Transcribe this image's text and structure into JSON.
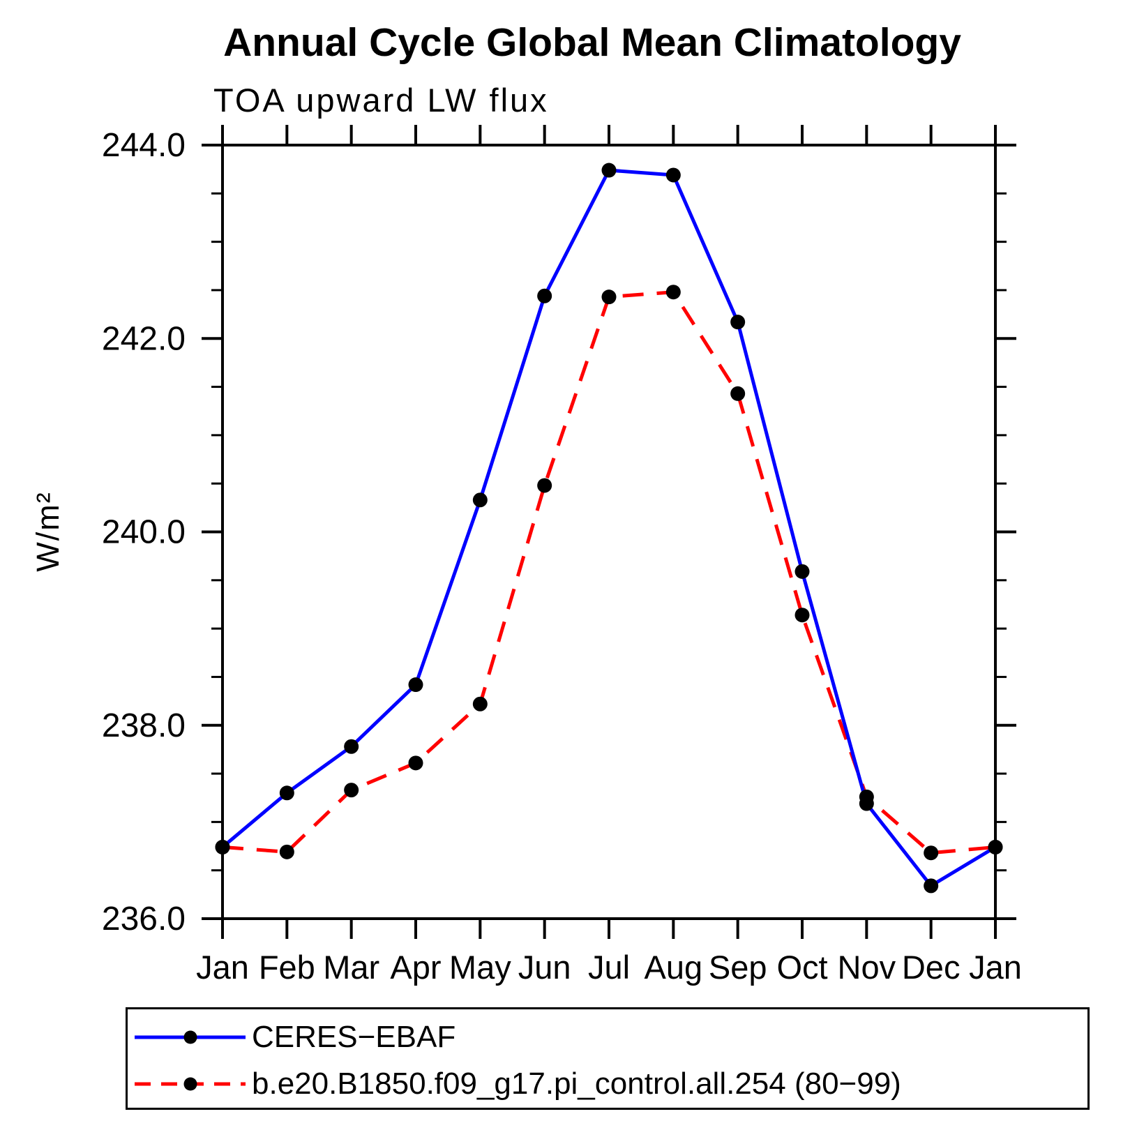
{
  "title": "Annual Cycle Global Mean Climatology",
  "subtitle": "TOA upward LW flux",
  "ylabel": "W/m²",
  "legend": {
    "items": [
      {
        "label": "CERES−EBAF"
      },
      {
        "label": "b.e20.B1850.f09_g17.pi_control.all.254 (80−99)"
      }
    ]
  },
  "chart_data": {
    "type": "line",
    "title": "Annual Cycle Global Mean Climatology",
    "subtitle": "TOA upward LW flux",
    "xlabel": "",
    "ylabel": "W/m²",
    "categories": [
      "Jan",
      "Feb",
      "Mar",
      "Apr",
      "May",
      "Jun",
      "Jul",
      "Aug",
      "Sep",
      "Oct",
      "Nov",
      "Dec",
      "Jan"
    ],
    "ylim": [
      236.0,
      244.0
    ],
    "y_major_ticks": [
      236.0,
      238.0,
      240.0,
      242.0,
      244.0
    ],
    "y_minor_step": 0.5,
    "grid": false,
    "legend_position": "bottom-left-box",
    "marker_color": "#000000",
    "series": [
      {
        "name": "CERES-EBAF",
        "color": "#0000ff",
        "line_style": "solid",
        "values": [
          236.74,
          237.3,
          237.78,
          238.42,
          240.33,
          242.44,
          243.74,
          243.69,
          242.17,
          239.59,
          237.19,
          236.34,
          236.74
        ]
      },
      {
        "name": "b.e20.B1850.f09_g17.pi_control.all.254 (80-99)",
        "color": "#ff0000",
        "line_style": "dashed",
        "values": [
          236.74,
          236.69,
          237.33,
          237.61,
          238.22,
          240.48,
          242.43,
          242.48,
          241.43,
          239.14,
          237.26,
          236.68,
          236.74
        ]
      }
    ]
  }
}
